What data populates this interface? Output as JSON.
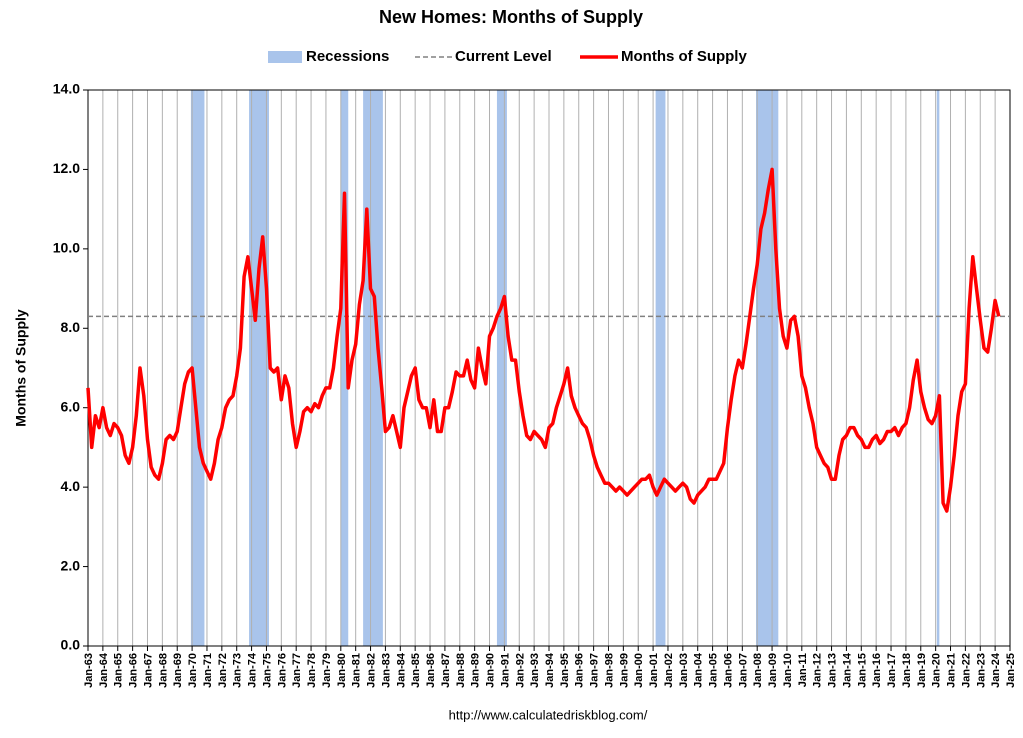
{
  "chart_data": {
    "type": "line",
    "title": "New Homes: Months of Supply",
    "y_label": "Months of Supply",
    "source": "http://www.calculatedriskblog.com/",
    "xlim": [
      1963,
      2025
    ],
    "ylim": [
      0,
      14
    ],
    "yticks": [
      {
        "value": 0,
        "label": "0.0"
      },
      {
        "value": 2,
        "label": "2.0"
      },
      {
        "value": 4,
        "label": "4.0"
      },
      {
        "value": 6,
        "label": "6.0"
      },
      {
        "value": 8,
        "label": "8.0"
      },
      {
        "value": 10,
        "label": "10.0"
      },
      {
        "value": 12,
        "label": "12.0"
      },
      {
        "value": 14,
        "label": "14.0"
      }
    ],
    "xticks": [
      {
        "value": 1963,
        "label": "Jan-63"
      },
      {
        "value": 1964,
        "label": "Jan-64"
      },
      {
        "value": 1965,
        "label": "Jan-65"
      },
      {
        "value": 1966,
        "label": "Jan-66"
      },
      {
        "value": 1967,
        "label": "Jan-67"
      },
      {
        "value": 1968,
        "label": "Jan-68"
      },
      {
        "value": 1969,
        "label": "Jan-69"
      },
      {
        "value": 1970,
        "label": "Jan-70"
      },
      {
        "value": 1971,
        "label": "Jan-71"
      },
      {
        "value": 1972,
        "label": "Jan-72"
      },
      {
        "value": 1973,
        "label": "Jan-73"
      },
      {
        "value": 1974,
        "label": "Jan-74"
      },
      {
        "value": 1975,
        "label": "Jan-75"
      },
      {
        "value": 1976,
        "label": "Jan-76"
      },
      {
        "value": 1977,
        "label": "Jan-77"
      },
      {
        "value": 1978,
        "label": "Jan-78"
      },
      {
        "value": 1979,
        "label": "Jan-79"
      },
      {
        "value": 1980,
        "label": "Jan-80"
      },
      {
        "value": 1981,
        "label": "Jan-81"
      },
      {
        "value": 1982,
        "label": "Jan-82"
      },
      {
        "value": 1983,
        "label": "Jan-83"
      },
      {
        "value": 1984,
        "label": "Jan-84"
      },
      {
        "value": 1985,
        "label": "Jan-85"
      },
      {
        "value": 1986,
        "label": "Jan-86"
      },
      {
        "value": 1987,
        "label": "Jan-87"
      },
      {
        "value": 1988,
        "label": "Jan-88"
      },
      {
        "value": 1989,
        "label": "Jan-89"
      },
      {
        "value": 1990,
        "label": "Jan-90"
      },
      {
        "value": 1991,
        "label": "Jan-91"
      },
      {
        "value": 1992,
        "label": "Jan-92"
      },
      {
        "value": 1993,
        "label": "Jan-93"
      },
      {
        "value": 1994,
        "label": "Jan-94"
      },
      {
        "value": 1995,
        "label": "Jan-95"
      },
      {
        "value": 1996,
        "label": "Jan-96"
      },
      {
        "value": 1997,
        "label": "Jan-97"
      },
      {
        "value": 1998,
        "label": "Jan-98"
      },
      {
        "value": 1999,
        "label": "Jan-99"
      },
      {
        "value": 2000,
        "label": "Jan-00"
      },
      {
        "value": 2001,
        "label": "Jan-01"
      },
      {
        "value": 2002,
        "label": "Jan-02"
      },
      {
        "value": 2003,
        "label": "Jan-03"
      },
      {
        "value": 2004,
        "label": "Jan-04"
      },
      {
        "value": 2005,
        "label": "Jan-05"
      },
      {
        "value": 2006,
        "label": "Jan-06"
      },
      {
        "value": 2007,
        "label": "Jan-07"
      },
      {
        "value": 2008,
        "label": "Jan-08"
      },
      {
        "value": 2009,
        "label": "Jan-09"
      },
      {
        "value": 2010,
        "label": "Jan-10"
      },
      {
        "value": 2011,
        "label": "Jan-11"
      },
      {
        "value": 2012,
        "label": "Jan-12"
      },
      {
        "value": 2013,
        "label": "Jan-13"
      },
      {
        "value": 2014,
        "label": "Jan-14"
      },
      {
        "value": 2015,
        "label": "Jan-15"
      },
      {
        "value": 2016,
        "label": "Jan-16"
      },
      {
        "value": 2017,
        "label": "Jan-17"
      },
      {
        "value": 2018,
        "label": "Jan-18"
      },
      {
        "value": 2019,
        "label": "Jan-19"
      },
      {
        "value": 2020,
        "label": "Jan-20"
      },
      {
        "value": 2021,
        "label": "Jan-21"
      },
      {
        "value": 2022,
        "label": "Jan-22"
      },
      {
        "value": 2023,
        "label": "Jan-23"
      },
      {
        "value": 2024,
        "label": "Jan-24"
      },
      {
        "value": 2025,
        "label": "Jan-25"
      }
    ],
    "grid": true,
    "recessions": {
      "name": "Recessions",
      "color": "#a9c4eb",
      "ranges": [
        [
          1969.92,
          1970.83
        ],
        [
          1973.83,
          1975.17
        ],
        [
          1980.0,
          1980.5
        ],
        [
          1981.5,
          1982.83
        ],
        [
          1990.5,
          1991.17
        ],
        [
          2001.17,
          2001.83
        ],
        [
          2007.92,
          2009.42
        ],
        [
          2020.08,
          2020.25
        ]
      ]
    },
    "current_level": {
      "name": "Current Level",
      "color": "#808080",
      "value": 8.3
    },
    "x": [
      1963,
      1963.25,
      1963.5,
      1963.75,
      1964,
      1964.25,
      1964.5,
      1964.75,
      1965,
      1965.25,
      1965.5,
      1965.75,
      1966,
      1966.25,
      1966.5,
      1966.75,
      1967,
      1967.25,
      1967.5,
      1967.75,
      1968,
      1968.25,
      1968.5,
      1968.75,
      1969,
      1969.25,
      1969.5,
      1969.75,
      1970,
      1970.25,
      1970.5,
      1970.75,
      1971,
      1971.25,
      1971.5,
      1971.75,
      1972,
      1972.25,
      1972.5,
      1972.75,
      1973,
      1973.25,
      1973.5,
      1973.75,
      1974,
      1974.25,
      1974.5,
      1974.75,
      1975,
      1975.25,
      1975.5,
      1975.75,
      1976,
      1976.25,
      1976.5,
      1976.75,
      1977,
      1977.25,
      1977.5,
      1977.75,
      1978,
      1978.25,
      1978.5,
      1978.75,
      1979,
      1979.25,
      1979.5,
      1979.75,
      1980,
      1980.25,
      1980.5,
      1980.75,
      1981,
      1981.25,
      1981.5,
      1981.75,
      1982,
      1982.25,
      1982.5,
      1982.75,
      1983,
      1983.25,
      1983.5,
      1983.75,
      1984,
      1984.25,
      1984.5,
      1984.75,
      1985,
      1985.25,
      1985.5,
      1985.75,
      1986,
      1986.25,
      1986.5,
      1986.75,
      1987,
      1987.25,
      1987.5,
      1987.75,
      1988,
      1988.25,
      1988.5,
      1988.75,
      1989,
      1989.25,
      1989.5,
      1989.75,
      1990,
      1990.25,
      1990.5,
      1990.75,
      1991,
      1991.25,
      1991.5,
      1991.75,
      1992,
      1992.25,
      1992.5,
      1992.75,
      1993,
      1993.25,
      1993.5,
      1993.75,
      1994,
      1994.25,
      1994.5,
      1994.75,
      1995,
      1995.25,
      1995.5,
      1995.75,
      1996,
      1996.25,
      1996.5,
      1996.75,
      1997,
      1997.25,
      1997.5,
      1997.75,
      1998,
      1998.25,
      1998.5,
      1998.75,
      1999,
      1999.25,
      1999.5,
      1999.75,
      2000,
      2000.25,
      2000.5,
      2000.75,
      2001,
      2001.25,
      2001.5,
      2001.75,
      2002,
      2002.25,
      2002.5,
      2002.75,
      2003,
      2003.25,
      2003.5,
      2003.75,
      2004,
      2004.25,
      2004.5,
      2004.75,
      2005,
      2005.25,
      2005.5,
      2005.75,
      2006,
      2006.25,
      2006.5,
      2006.75,
      2007,
      2007.25,
      2007.5,
      2007.75,
      2008,
      2008.25,
      2008.5,
      2008.75,
      2009,
      2009.25,
      2009.5,
      2009.75,
      2010,
      2010.25,
      2010.5,
      2010.75,
      2011,
      2011.25,
      2011.5,
      2011.75,
      2012,
      2012.25,
      2012.5,
      2012.75,
      2013,
      2013.25,
      2013.5,
      2013.75,
      2014,
      2014.25,
      2014.5,
      2014.75,
      2015,
      2015.25,
      2015.5,
      2015.75,
      2016,
      2016.25,
      2016.5,
      2016.75,
      2017,
      2017.25,
      2017.5,
      2017.75,
      2018,
      2018.25,
      2018.5,
      2018.75,
      2019,
      2019.25,
      2019.5,
      2019.75,
      2020,
      2020.25,
      2020.5,
      2020.75,
      2021,
      2021.25,
      2021.5,
      2021.75,
      2022,
      2022.25,
      2022.5,
      2022.75,
      2023,
      2023.25,
      2023.5,
      2023.75,
      2024,
      2024.25
    ],
    "series": [
      {
        "name": "Months of Supply",
        "color": "#ff0000",
        "values": [
          6.5,
          5.0,
          5.8,
          5.5,
          6.0,
          5.5,
          5.3,
          5.6,
          5.5,
          5.3,
          4.8,
          4.6,
          5.0,
          5.8,
          7.0,
          6.3,
          5.2,
          4.5,
          4.3,
          4.2,
          4.6,
          5.2,
          5.3,
          5.2,
          5.4,
          6.0,
          6.6,
          6.9,
          7.0,
          6.0,
          5.0,
          4.6,
          4.4,
          4.2,
          4.6,
          5.2,
          5.5,
          6.0,
          6.2,
          6.3,
          6.8,
          7.5,
          9.3,
          9.8,
          9.0,
          8.2,
          9.5,
          10.3,
          9.0,
          7.0,
          6.9,
          7.0,
          6.2,
          6.8,
          6.5,
          5.6,
          5.0,
          5.4,
          5.9,
          6.0,
          5.9,
          6.1,
          6.0,
          6.3,
          6.5,
          6.5,
          7.0,
          7.8,
          8.5,
          11.4,
          6.5,
          7.2,
          7.6,
          8.6,
          9.2,
          11.0,
          9.0,
          8.8,
          7.5,
          6.5,
          5.4,
          5.5,
          5.8,
          5.4,
          5.0,
          6.0,
          6.4,
          6.8,
          7.0,
          6.2,
          6.0,
          6.0,
          5.5,
          6.2,
          5.4,
          5.4,
          6.0,
          6.0,
          6.4,
          6.9,
          6.8,
          6.8,
          7.2,
          6.7,
          6.5,
          7.5,
          7.0,
          6.6,
          7.8,
          8.0,
          8.3,
          8.5,
          8.8,
          7.8,
          7.2,
          7.2,
          6.4,
          5.8,
          5.3,
          5.2,
          5.4,
          5.3,
          5.2,
          5.0,
          5.5,
          5.6,
          6.0,
          6.3,
          6.6,
          7.0,
          6.3,
          6.0,
          5.8,
          5.6,
          5.5,
          5.2,
          4.8,
          4.5,
          4.3,
          4.1,
          4.1,
          4.0,
          3.9,
          4.0,
          3.9,
          3.8,
          3.9,
          4.0,
          4.1,
          4.2,
          4.2,
          4.3,
          4.0,
          3.8,
          4.0,
          4.2,
          4.1,
          4.0,
          3.9,
          4.0,
          4.1,
          4.0,
          3.7,
          3.6,
          3.8,
          3.9,
          4.0,
          4.2,
          4.2,
          4.2,
          4.4,
          4.6,
          5.5,
          6.2,
          6.8,
          7.2,
          7.0,
          7.6,
          8.3,
          9.0,
          9.6,
          10.5,
          10.9,
          11.5,
          12.0,
          10.0,
          8.5,
          7.8,
          7.5,
          8.2,
          8.3,
          7.8,
          6.8,
          6.5,
          6.0,
          5.6,
          5.0,
          4.8,
          4.6,
          4.5,
          4.2,
          4.2,
          4.8,
          5.2,
          5.3,
          5.5,
          5.5,
          5.3,
          5.2,
          5.0,
          5.0,
          5.2,
          5.3,
          5.1,
          5.2,
          5.4,
          5.4,
          5.5,
          5.3,
          5.5,
          5.6,
          6.0,
          6.7,
          7.2,
          6.4,
          6.0,
          5.7,
          5.6,
          5.8,
          6.3,
          3.6,
          3.4,
          4.0,
          4.8,
          5.8,
          6.4,
          6.6,
          8.5,
          9.8,
          9.0,
          8.2,
          7.5,
          7.4,
          8.0,
          8.7,
          8.3
        ]
      }
    ]
  }
}
